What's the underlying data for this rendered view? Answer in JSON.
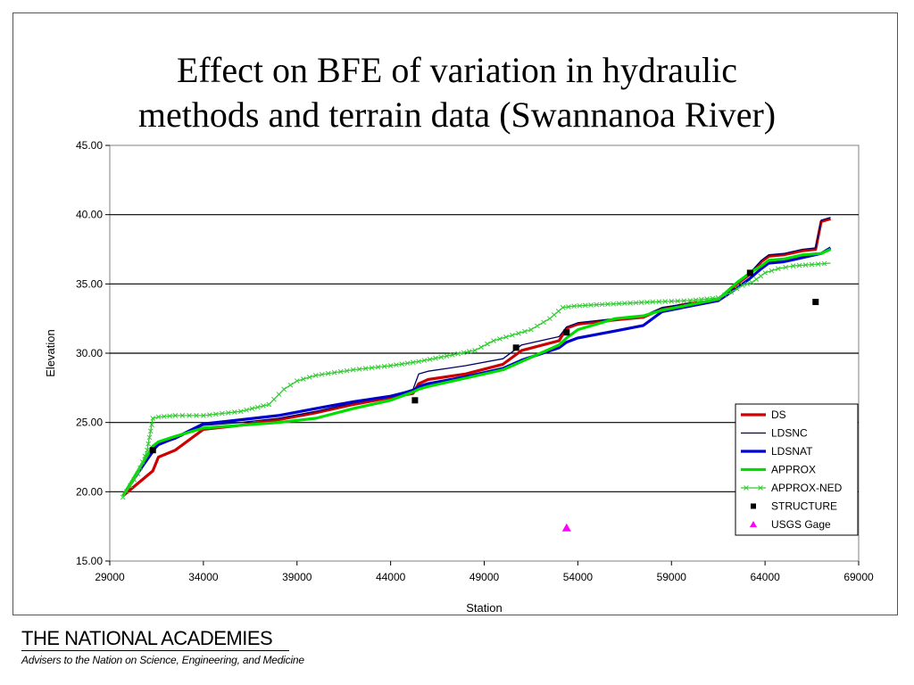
{
  "slide": {
    "title_line1": "Effect on BFE of variation in hydraulic",
    "title_line2": "methods and terrain data (Swannanoa River)",
    "footer_org": "THE NATIONAL ACADEMIES",
    "footer_tagline": "Advisers to the Nation on Science, Engineering, and Medicine"
  },
  "chart_data": {
    "type": "line",
    "title": "",
    "xlabel": "Station",
    "ylabel": "Elevation",
    "xlim": [
      29000,
      69000
    ],
    "ylim": [
      15,
      45
    ],
    "xticks": [
      29000,
      34000,
      39000,
      44000,
      49000,
      54000,
      59000,
      64000,
      69000
    ],
    "yticks": [
      "15.00",
      "20.00",
      "25.00",
      "30.00",
      "35.00",
      "40.00",
      "45.00"
    ],
    "grid": "horizontal",
    "legend_position": "bottom-right",
    "series": [
      {
        "name": "DS",
        "color": "#cc0000",
        "style": "thick",
        "x": [
          29700,
          31300,
          31600,
          32500,
          34000,
          36000,
          38000,
          40000,
          42000,
          44000,
          45200,
          45500,
          46000,
          48000,
          50000,
          51000,
          53000,
          53400,
          54000,
          56000,
          57500,
          58500,
          60000,
          61500,
          62500,
          63200,
          63800,
          64200,
          65000,
          66000,
          66700,
          67000,
          67500
        ],
        "y": [
          19.7,
          21.5,
          22.5,
          23.0,
          24.5,
          24.8,
          25.2,
          25.7,
          26.3,
          26.8,
          27.1,
          27.8,
          28.1,
          28.5,
          29.2,
          30.2,
          30.9,
          31.8,
          32.1,
          32.4,
          32.6,
          33.2,
          33.6,
          33.8,
          35.0,
          35.7,
          36.6,
          37.0,
          37.1,
          37.4,
          37.5,
          39.5,
          39.7
        ]
      },
      {
        "name": "LDSNC",
        "color": "#000066",
        "style": "thin",
        "x": [
          29700,
          31300,
          31600,
          32500,
          34000,
          36000,
          38000,
          40000,
          42000,
          44000,
          45200,
          45500,
          46000,
          48000,
          50000,
          51000,
          53000,
          53400,
          54000,
          56000,
          57500,
          58500,
          60000,
          61500,
          62500,
          63200,
          63800,
          64200,
          65000,
          66000,
          66700,
          67000,
          67500
        ],
        "y": [
          19.7,
          22.8,
          23.4,
          23.8,
          24.8,
          25.0,
          25.3,
          25.8,
          26.4,
          26.9,
          27.4,
          28.5,
          28.7,
          29.1,
          29.6,
          30.6,
          31.2,
          31.9,
          32.2,
          32.5,
          32.7,
          33.3,
          33.6,
          33.8,
          35.1,
          35.8,
          36.7,
          37.1,
          37.2,
          37.5,
          37.6,
          39.6,
          39.8
        ]
      },
      {
        "name": "LDSNAT",
        "color": "#0000cc",
        "style": "thick",
        "x": [
          29700,
          31300,
          31600,
          32500,
          34000,
          36000,
          38000,
          40000,
          42000,
          44000,
          45200,
          45500,
          46000,
          48000,
          50000,
          51000,
          53000,
          53400,
          54000,
          56000,
          57500,
          58500,
          60000,
          61500,
          62500,
          63200,
          63800,
          64200,
          65000,
          66000,
          67000,
          67500
        ],
        "y": [
          19.7,
          23.0,
          23.4,
          23.9,
          24.9,
          25.2,
          25.5,
          26.0,
          26.5,
          26.9,
          27.3,
          27.6,
          27.8,
          28.3,
          28.9,
          29.5,
          30.4,
          30.8,
          31.1,
          31.6,
          32.0,
          33.0,
          33.4,
          33.8,
          34.7,
          35.4,
          36.1,
          36.5,
          36.6,
          36.9,
          37.2,
          37.6
        ]
      },
      {
        "name": "APPROX",
        "color": "#00dd00",
        "style": "thick",
        "x": [
          29700,
          31300,
          31600,
          32500,
          34000,
          36000,
          38000,
          40000,
          42000,
          44000,
          45200,
          45500,
          46000,
          48000,
          50000,
          51000,
          53000,
          53400,
          54000,
          56000,
          57500,
          58500,
          60000,
          61500,
          62500,
          63200,
          63800,
          64200,
          65000,
          66000,
          67000,
          67500
        ],
        "y": [
          19.7,
          23.3,
          23.6,
          24.0,
          24.6,
          24.8,
          25.0,
          25.3,
          26.0,
          26.6,
          27.2,
          27.4,
          27.6,
          28.2,
          28.8,
          29.4,
          30.6,
          31.1,
          31.7,
          32.5,
          32.7,
          33.1,
          33.5,
          33.9,
          35.1,
          35.8,
          36.3,
          36.7,
          36.8,
          37.1,
          37.2,
          37.5
        ]
      },
      {
        "name": "APPROX-NED",
        "color": "#33cc33",
        "style": "thin-x",
        "x": [
          29700,
          30500,
          31000,
          31300,
          31600,
          32500,
          34000,
          36000,
          37500,
          38300,
          39000,
          40000,
          42000,
          44000,
          45500,
          47000,
          48500,
          49500,
          50500,
          51500,
          52500,
          53200,
          53800,
          55000,
          56500,
          58000,
          60000,
          61500,
          62200,
          62800,
          63300,
          64000,
          64700,
          65500,
          66500,
          67500
        ],
        "y": [
          19.6,
          21.3,
          23.0,
          25.3,
          25.4,
          25.5,
          25.5,
          25.8,
          26.3,
          27.4,
          28.0,
          28.4,
          28.8,
          29.1,
          29.4,
          29.8,
          30.2,
          30.9,
          31.3,
          31.7,
          32.5,
          33.3,
          33.4,
          33.5,
          33.6,
          33.7,
          33.8,
          34.0,
          34.4,
          34.9,
          35.1,
          35.8,
          36.1,
          36.3,
          36.4,
          36.5
        ]
      }
    ],
    "markers": [
      {
        "name": "STRUCTURE",
        "color": "#000000",
        "shape": "square",
        "x": [
          31300,
          45300,
          50700,
          53400,
          63200,
          66700
        ],
        "y": [
          23.0,
          26.6,
          30.4,
          31.5,
          35.8,
          33.7
        ]
      },
      {
        "name": "USGS Gage",
        "color": "#ff00ff",
        "shape": "triangle",
        "x": [
          53400
        ],
        "y": [
          17.4
        ]
      }
    ]
  }
}
